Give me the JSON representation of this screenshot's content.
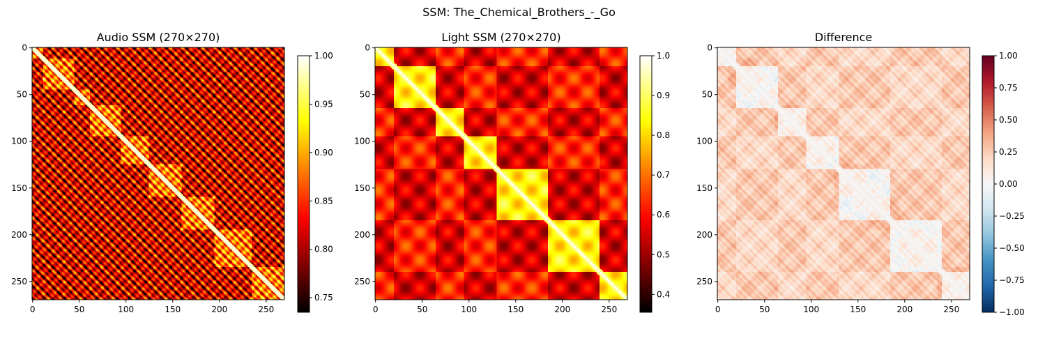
{
  "figure": {
    "suptitle": "SSM: The_Chemical_Brothers_-_Go"
  },
  "chart_data": [
    {
      "type": "heatmap",
      "title": "Audio SSM (270×270)",
      "n": 270,
      "colormap": "hot",
      "xticks": [
        0,
        50,
        100,
        150,
        200,
        250
      ],
      "yticks": [
        0,
        50,
        100,
        150,
        200,
        250
      ],
      "vmin": 0.735,
      "vmax": 1.0,
      "colorbar_ticks": [
        0.75,
        0.8,
        0.85,
        0.9,
        0.95,
        1.0
      ],
      "colorbar_labels": [
        "0.75",
        "0.80",
        "0.85",
        "0.90",
        "0.95",
        "1.00"
      ],
      "approx_segment_boundaries": [
        12,
        45,
        62,
        95,
        125,
        160,
        195,
        235,
        270
      ]
    },
    {
      "type": "heatmap",
      "title": "Light SSM (270×270)",
      "n": 270,
      "colormap": "hot",
      "xticks": [
        0,
        50,
        100,
        150,
        200,
        250
      ],
      "yticks": [
        0,
        50,
        100,
        150,
        200,
        250
      ],
      "vmin": 0.355,
      "vmax": 1.0,
      "colorbar_ticks": [
        0.4,
        0.5,
        0.6,
        0.7,
        0.8,
        0.9,
        1.0
      ],
      "colorbar_labels": [
        "0.4",
        "0.5",
        "0.6",
        "0.7",
        "0.8",
        "0.9",
        "1.0"
      ],
      "approx_segment_boundaries": [
        20,
        65,
        95,
        130,
        185,
        240,
        270
      ]
    },
    {
      "type": "heatmap",
      "title": "Difference",
      "n": 270,
      "colormap": "RdBu_r",
      "xticks": [
        0,
        50,
        100,
        150,
        200,
        250
      ],
      "yticks": [
        0,
        50,
        100,
        150,
        200,
        250
      ],
      "vmin": -1.0,
      "vmax": 1.0,
      "colorbar_ticks": [
        -1.0,
        -0.75,
        -0.5,
        -0.25,
        0.0,
        0.25,
        0.5,
        0.75,
        1.0
      ],
      "colorbar_labels": [
        "−1.00",
        "−0.75",
        "−0.50",
        "−0.25",
        "0.00",
        "0.25",
        "0.50",
        "0.75",
        "1.00"
      ]
    }
  ]
}
